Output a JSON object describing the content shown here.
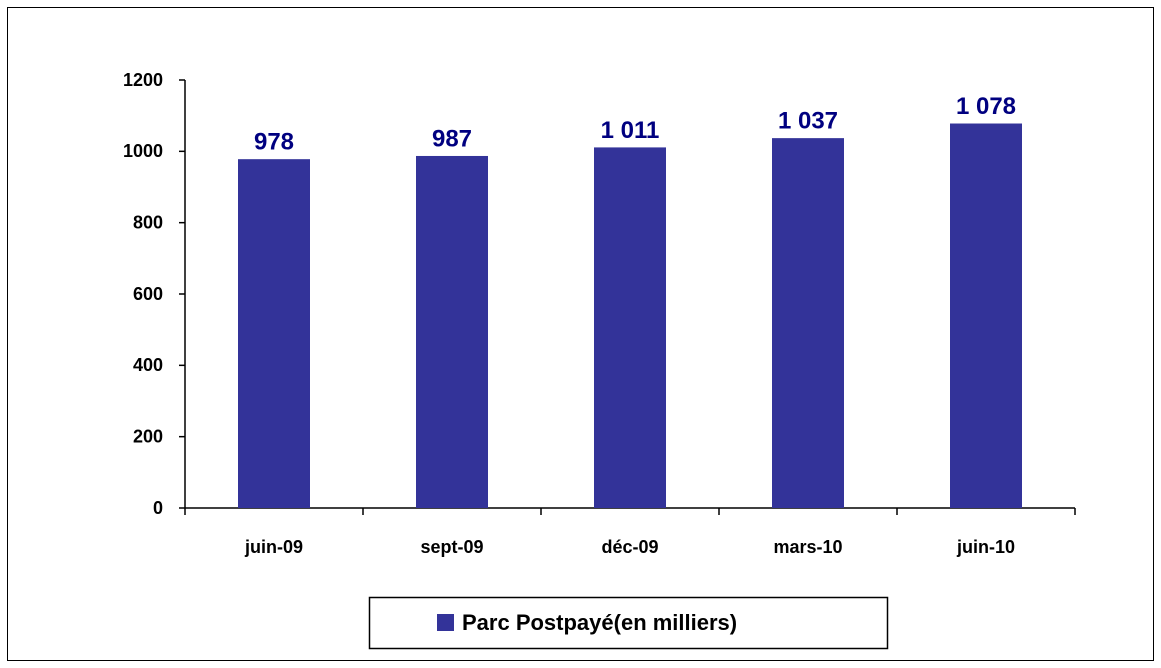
{
  "chart_data": {
    "type": "bar",
    "categories": [
      "juin-09",
      "sept-09",
      "déc-09",
      "mars-10",
      "juin-10"
    ],
    "series": [
      {
        "name": "Parc Postpayé(en milliers)",
        "color": "#333399",
        "values": [
          978,
          987,
          1011,
          1037,
          1078
        ],
        "value_labels": [
          "978",
          "987",
          "1 011",
          "1 037",
          "1 078"
        ]
      }
    ],
    "ylim": [
      0,
      1200
    ],
    "yticks": [
      0,
      200,
      400,
      600,
      800,
      1000,
      1200
    ],
    "grid": false,
    "legend": "bottom"
  }
}
